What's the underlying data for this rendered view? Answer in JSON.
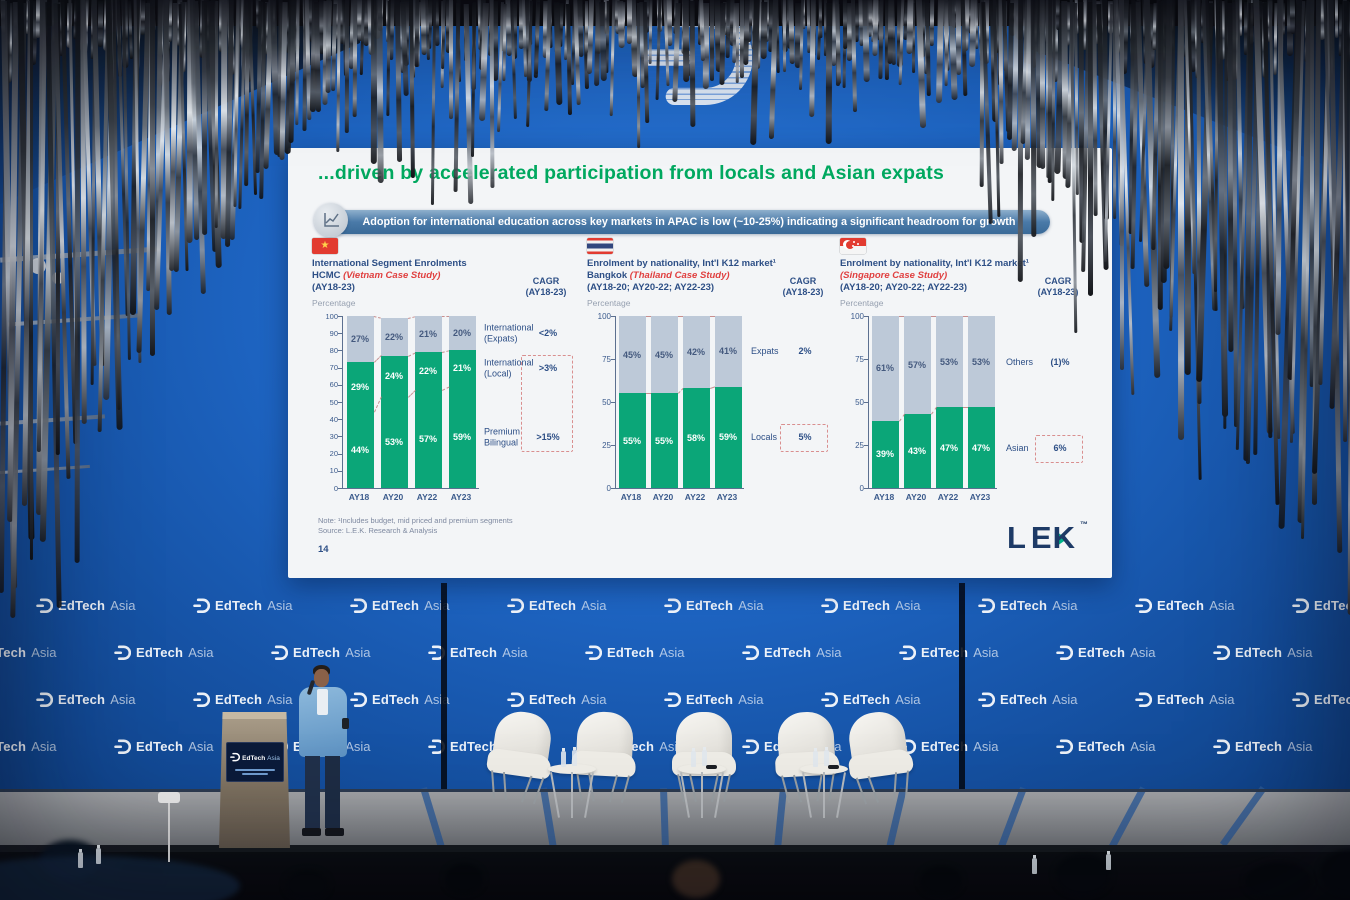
{
  "event": {
    "brand": {
      "bold": "EdTech",
      "light": "Asia"
    }
  },
  "slide": {
    "title": "...driven by accelerated participation from locals and Asian expats",
    "banner": {
      "text": "Adoption for international education across key markets in APAC is low (~10-25%) indicating a significant headroom for growth"
    },
    "footer": {
      "note": "Note: ¹Includes budget, mid priced and premium segments",
      "source": "Source: L.E.K. Research & Analysis",
      "page": "14"
    },
    "lek_logo": {
      "le": "LE",
      "k": "K",
      "tm": "™"
    },
    "colors": {
      "title_green": "#00a85f",
      "banner_blue": "#4a7aa8",
      "bar_green": "#0ba678",
      "bar_gray": "#bdc9d8",
      "wall_blue": "#1d63c0",
      "header_navy": "#2d4f86",
      "case_study_red": "#e04040"
    }
  },
  "chart_data": [
    {
      "type": "bar",
      "stacked": true,
      "flag": "vietnam",
      "title_line1": "International Segment Enrolments",
      "title_bold": "HCMC",
      "title_red": "(Vietnam Case Study)",
      "title_line3": "(AY18-23)",
      "ylabel": "Percentage",
      "cagr_header": [
        "CAGR",
        "(AY18-23)"
      ],
      "categories": [
        "AY18",
        "AY20",
        "AY22",
        "AY23"
      ],
      "ylim": [
        0,
        100
      ],
      "y_ticks": [
        0,
        10,
        20,
        30,
        40,
        50,
        60,
        70,
        80,
        90,
        100
      ],
      "grid": false,
      "legend_position": "right",
      "series": [
        {
          "name": "Premium Bilingual",
          "values": [
            44,
            53,
            57,
            59
          ],
          "color": "#0ba678",
          "label_color": "#ffffff",
          "cagr": ">15%",
          "cagr_boxed": true
        },
        {
          "name": "International (Local)",
          "values": [
            29,
            24,
            22,
            21
          ],
          "color": "#0ba678",
          "label_color": "#ffffff",
          "cagr": ">3%",
          "cagr_boxed": true
        },
        {
          "name": "International (Expats)",
          "values": [
            27,
            22,
            21,
            20
          ],
          "color": "#bdc9d8",
          "label_color": "#44597e",
          "cagr": "<2%",
          "cagr_boxed": false
        }
      ]
    },
    {
      "type": "bar",
      "stacked": true,
      "flag": "thailand",
      "title_line1": "Enrolment by nationality, Int'l K12 market¹",
      "title_bold": "Bangkok",
      "title_red": "(Thailand Case Study)",
      "title_line3": "(AY18-20; AY20-22; AY22-23)",
      "ylabel": "Percentage",
      "cagr_header": [
        "CAGR",
        "(AY18-23)"
      ],
      "categories": [
        "AY18",
        "AY20",
        "AY22",
        "AY23"
      ],
      "ylim": [
        0,
        100
      ],
      "y_ticks": [
        0,
        25,
        50,
        75,
        100
      ],
      "grid": false,
      "legend_position": "right",
      "series": [
        {
          "name": "Locals",
          "values": [
            55,
            55,
            58,
            59
          ],
          "color": "#0ba678",
          "label_color": "#ffffff",
          "cagr": "5%",
          "cagr_boxed": true
        },
        {
          "name": "Expats",
          "values": [
            45,
            45,
            42,
            41
          ],
          "color": "#bdc9d8",
          "label_color": "#44597e",
          "cagr": "2%",
          "cagr_boxed": false
        }
      ]
    },
    {
      "type": "bar",
      "stacked": true,
      "flag": "singapore",
      "title_line1": "Enrolment by nationality, Int'l K12 market¹",
      "title_bold": "",
      "title_red": "(Singapore Case Study)",
      "title_line3": "(AY18-20; AY20-22; AY22-23)",
      "ylabel": "Percentage",
      "cagr_header": [
        "CAGR",
        "(AY18-23)"
      ],
      "categories": [
        "AY18",
        "AY20",
        "AY22",
        "AY23"
      ],
      "ylim": [
        0,
        100
      ],
      "y_ticks": [
        0,
        25,
        50,
        75,
        100
      ],
      "grid": false,
      "legend_position": "right",
      "series": [
        {
          "name": "Asian",
          "values": [
            39,
            43,
            47,
            47
          ],
          "color": "#0ba678",
          "label_color": "#ffffff",
          "cagr": "6%",
          "cagr_boxed": true
        },
        {
          "name": "Others",
          "values": [
            61,
            57,
            53,
            53
          ],
          "color": "#bdc9d8",
          "label_color": "#44597e",
          "cagr": "(1)%",
          "cagr_boxed": false
        }
      ]
    }
  ]
}
